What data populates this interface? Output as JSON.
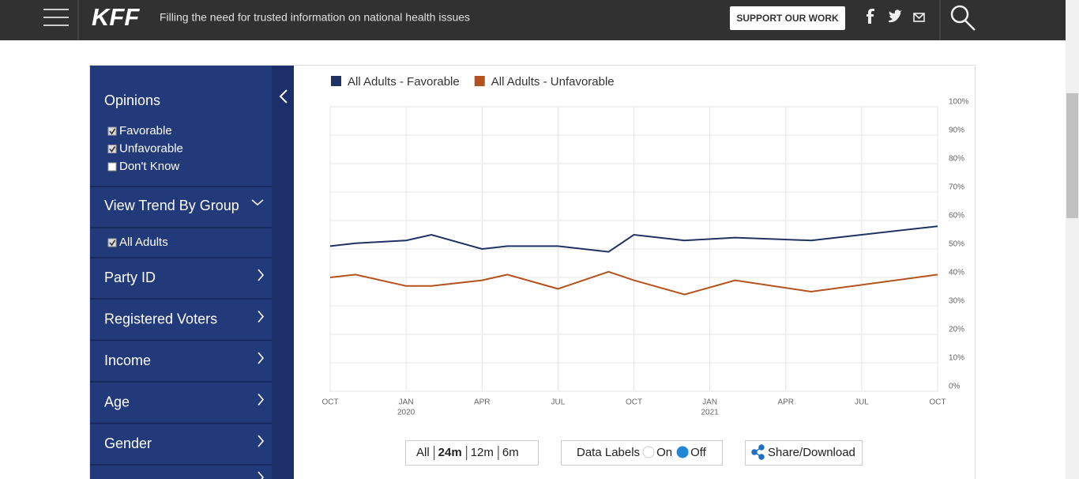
{
  "header": {
    "logo": "KFF",
    "tagline": "Filling the need for trusted information on national health issues",
    "button": "SUPPORT OUR WORK"
  },
  "sidebar": {
    "opinions": {
      "title": "Opinions",
      "options": [
        {
          "label": "Favorable",
          "checked": true
        },
        {
          "label": "Unfavorable",
          "checked": true
        },
        {
          "label": "Don't Know",
          "checked": false
        }
      ]
    },
    "trend": {
      "title": "View Trend By Group",
      "options": [
        {
          "label": "All Adults",
          "checked": true
        }
      ]
    },
    "groups": [
      "Party ID",
      "Registered Voters",
      "Income",
      "Age",
      "Gender"
    ]
  },
  "chart_data": {
    "type": "line",
    "x": [
      "2019-10",
      "2019-11",
      "2020-01",
      "2020-02",
      "2020-04",
      "2020-05",
      "2020-07",
      "2020-09",
      "2020-10",
      "2020-12",
      "2021-02",
      "2021-05",
      "2021-10"
    ],
    "series": [
      {
        "name": "All Adults - Favorable",
        "color": "#1f3263",
        "values": [
          51,
          52,
          53,
          55,
          50,
          51,
          51,
          49,
          55,
          53,
          54,
          53,
          58
        ]
      },
      {
        "name": "All Adults - Unfavorable",
        "color": "#b4521d",
        "values": [
          40,
          41,
          37,
          37,
          39,
          41,
          36,
          42,
          39,
          34,
          39,
          35,
          41
        ]
      }
    ],
    "xlim": [
      "2019-10",
      "2021-10"
    ],
    "xticks": [
      {
        "value": "2019-10",
        "label": "OCT"
      },
      {
        "value": "2020-01",
        "label": "JAN",
        "year": "2020"
      },
      {
        "value": "2020-04",
        "label": "APR"
      },
      {
        "value": "2020-07",
        "label": "JUL"
      },
      {
        "value": "2020-10",
        "label": "OCT"
      },
      {
        "value": "2021-01",
        "label": "JAN",
        "year": "2021"
      },
      {
        "value": "2021-04",
        "label": "APR"
      },
      {
        "value": "2021-07",
        "label": "JUL"
      },
      {
        "value": "2021-10",
        "label": "OCT"
      }
    ],
    "ylim": [
      0,
      100
    ],
    "yticks": [
      {
        "value": 0,
        "label": "0%"
      },
      {
        "value": 10,
        "label": "10%"
      },
      {
        "value": 20,
        "label": "20%"
      },
      {
        "value": 30,
        "label": "30%"
      },
      {
        "value": 40,
        "label": "40%"
      },
      {
        "value": 50,
        "label": "50%"
      },
      {
        "value": 60,
        "label": "60%"
      },
      {
        "value": 70,
        "label": "70%"
      },
      {
        "value": 80,
        "label": "80%"
      },
      {
        "value": 90,
        "label": "90%"
      },
      {
        "value": 100,
        "label": "100%"
      }
    ],
    "grid": true,
    "y_axis_side": "right"
  },
  "controls": {
    "range": {
      "options": [
        "All",
        "24m",
        "12m",
        "6m"
      ],
      "selected": 1
    },
    "data_labels": {
      "label": "Data Labels",
      "options": [
        "On",
        "Off"
      ],
      "selected": 1
    },
    "share": "Share/Download"
  }
}
